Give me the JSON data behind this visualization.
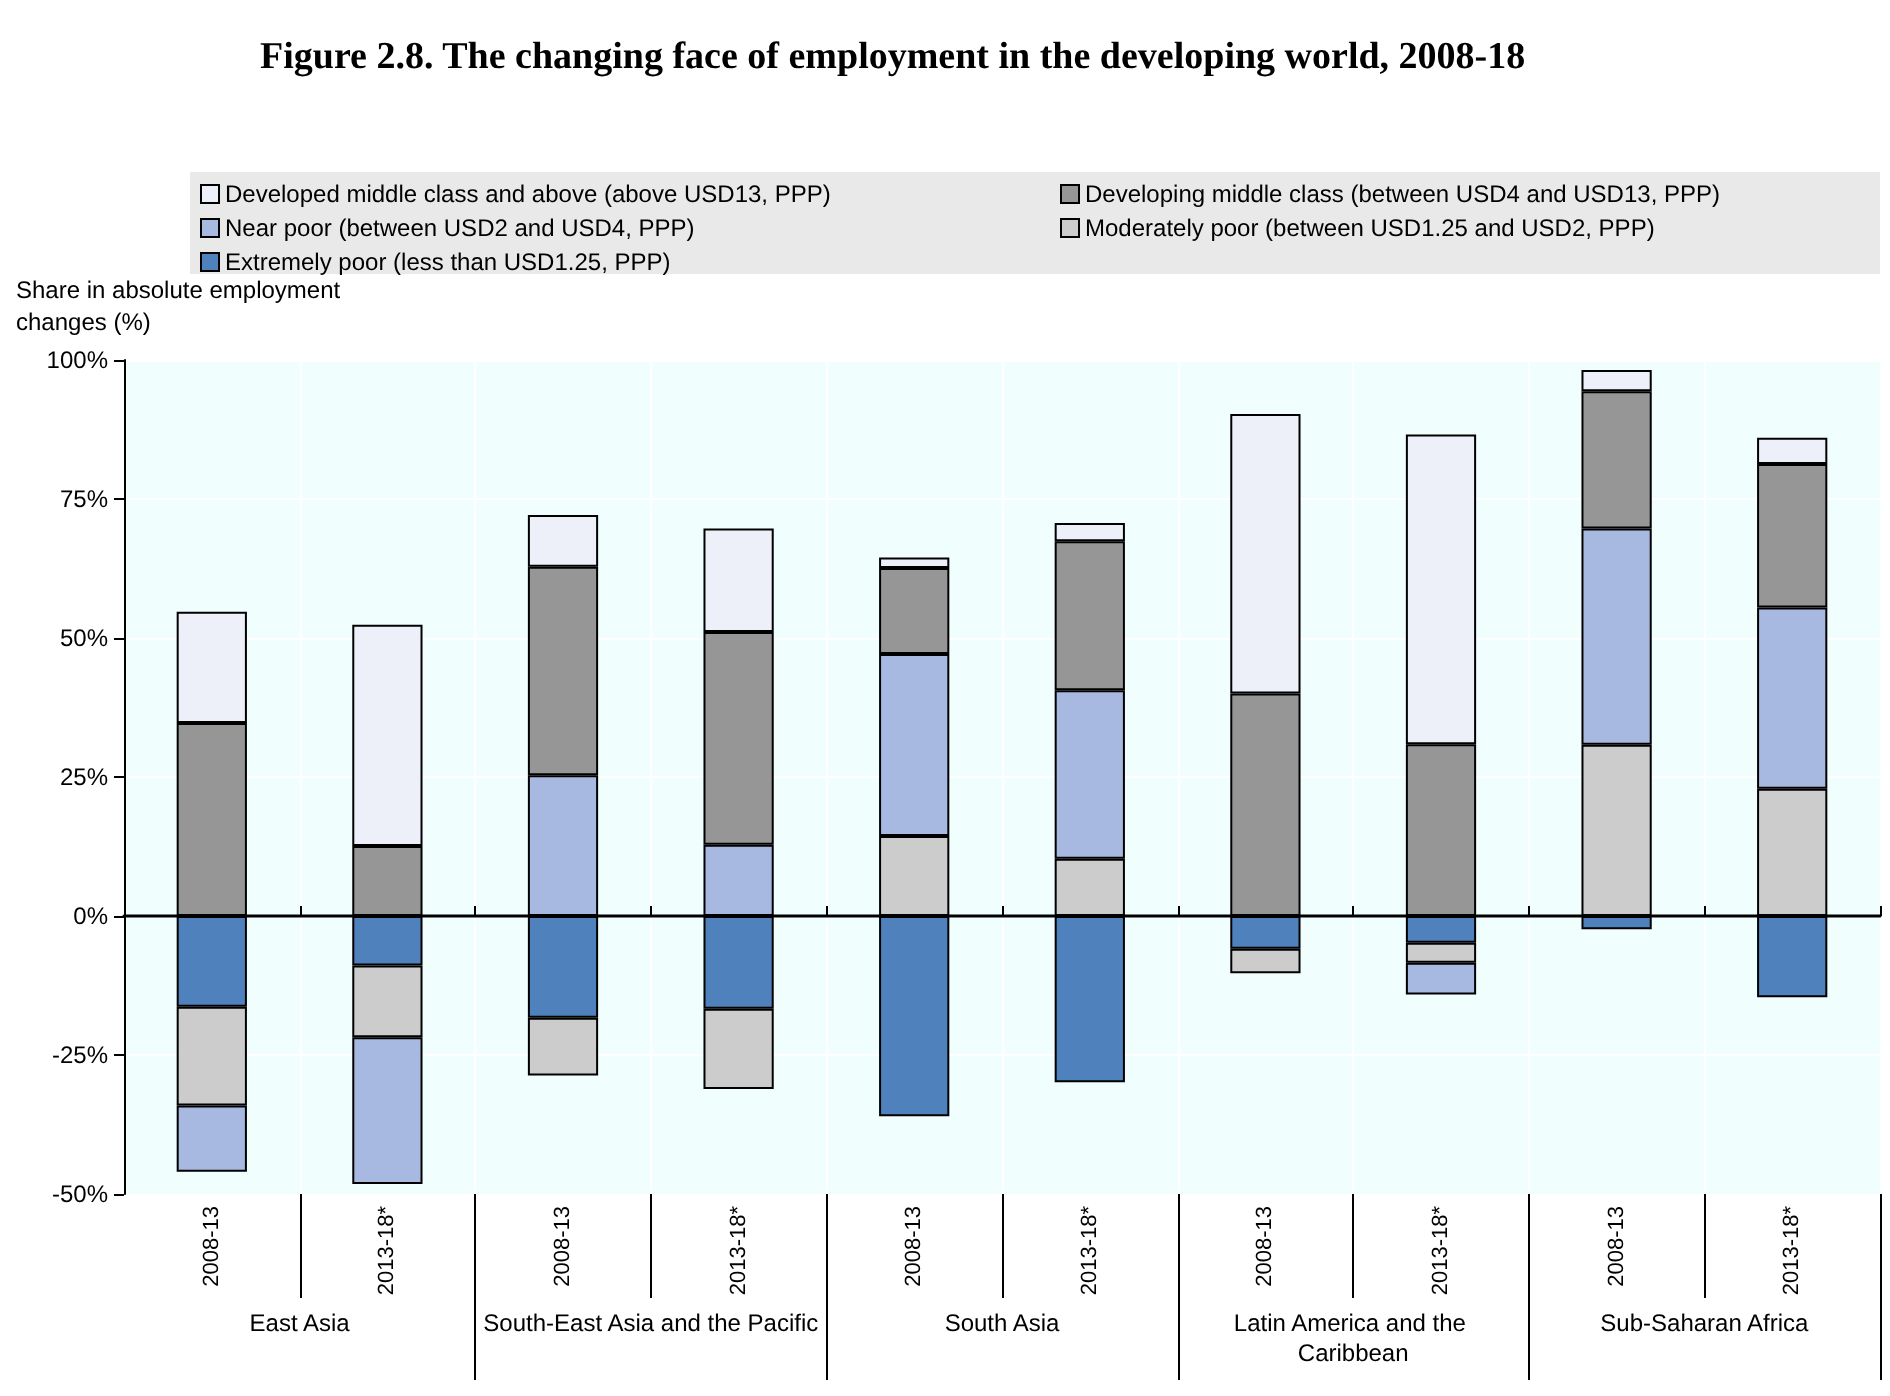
{
  "chart_data": {
    "type": "bar",
    "title": "Figure 2.8. The changing face of employment in the developing world, 2008-18",
    "ylabel": "Share in absolute employment changes (%)",
    "categories": [
      "2008-13",
      "2013-18*",
      "2008-13",
      "2013-18*",
      "2008-13",
      "2013-18*",
      "2008-13",
      "2013-18*",
      "2008-13",
      "2013-18*"
    ],
    "stacked": true,
    "series": [
      {
        "name": "Extremely poor (less than USD1.25, PPP)",
        "color": "#4f81bd",
        "values": [
          -16.3,
          -8.9,
          -18.3,
          -16.7,
          -36.0,
          -29.9,
          -5.9,
          -4.8,
          -2.4,
          -14.6
        ]
      },
      {
        "name": "Moderately poor (between USD1.25 and USD2, PPP)",
        "color": "#cccccc",
        "values": [
          -17.8,
          -12.9,
          -10.4,
          -14.4,
          14.4,
          10.3,
          -4.4,
          -3.6,
          30.8,
          22.9
        ]
      },
      {
        "name": "Near poor (between USD2 and USD4, PPP)",
        "color": "#a7b8e1",
        "values": [
          -11.9,
          -26.4,
          25.3,
          12.8,
          32.7,
          30.3,
          null,
          -5.7,
          38.9,
          32.6
        ]
      },
      {
        "name": "Developing middle class (between USD4 and USD13, PPP)",
        "color": "#969696",
        "values": [
          34.7,
          12.6,
          37.5,
          38.3,
          15.5,
          26.8,
          40.0,
          30.9,
          24.7,
          25.8
        ]
      },
      {
        "name": "Developed middle class and above (above USD13, PPP)",
        "color": "#edf0f8",
        "values": [
          20.0,
          39.8,
          9.3,
          18.6,
          1.9,
          3.3,
          50.3,
          55.7,
          3.8,
          4.7
        ]
      }
    ],
    "ylim": [
      -50,
      100
    ],
    "yticks": [
      {
        "value": -50,
        "label": "-50%"
      },
      {
        "value": -25,
        "label": "-25%"
      },
      {
        "value": 0,
        "label": "0%"
      },
      {
        "value": 25,
        "label": "25%"
      },
      {
        "value": 50,
        "label": "50%"
      },
      {
        "value": 75,
        "label": "75%"
      },
      {
        "value": 100,
        "label": "100%"
      }
    ],
    "grid": true,
    "legend": "top",
    "annotations": [
      "East Asia",
      "South-East Asia and the Pacific",
      "South Asia",
      "Latin America and the Caribbean",
      "Sub-Saharan Africa"
    ]
  }
}
